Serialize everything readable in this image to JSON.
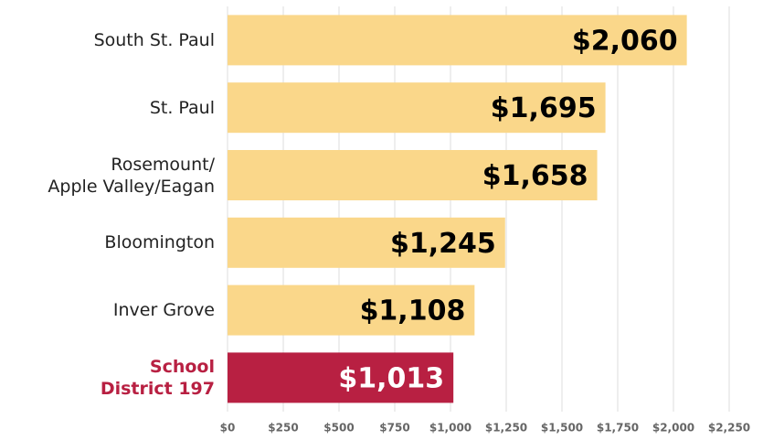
{
  "chart_data": {
    "type": "barh",
    "categories": [
      "South St. Paul",
      "St. Paul",
      "Rosemount/\nApple Valley/Eagan",
      "Bloomington",
      "Inver Grove",
      "School\nDistrict 197"
    ],
    "values": [
      2060,
      1695,
      1658,
      1245,
      1108,
      1013
    ],
    "value_labels": [
      "$2,060",
      "$1,695",
      "$1,658",
      "$1,245",
      "$1,108",
      "$1,013"
    ],
    "colors": [
      "#fad78a",
      "#fad78a",
      "#fad78a",
      "#fad78a",
      "#fad78a",
      "#b82042"
    ],
    "label_colors": [
      "#222222",
      "#222222",
      "#222222",
      "#222222",
      "#222222",
      "#b82042"
    ],
    "value_label_colors": [
      "#000000",
      "#000000",
      "#000000",
      "#000000",
      "#000000",
      "#ffffff"
    ],
    "xlim": [
      0,
      2250
    ],
    "xticks": [
      {
        "value": 0,
        "label": "$0"
      },
      {
        "value": 250,
        "label": "$250"
      },
      {
        "value": 500,
        "label": "$500"
      },
      {
        "value": 750,
        "label": "$750"
      },
      {
        "value": 1000,
        "label": "$1,000"
      },
      {
        "value": 1250,
        "label": "$1,250"
      },
      {
        "value": 1500,
        "label": "$1,500"
      },
      {
        "value": 1750,
        "label": "$1,750"
      },
      {
        "value": 2000,
        "label": "$2,000"
      },
      {
        "value": 2250,
        "label": "$2,250"
      }
    ],
    "grid": true
  }
}
